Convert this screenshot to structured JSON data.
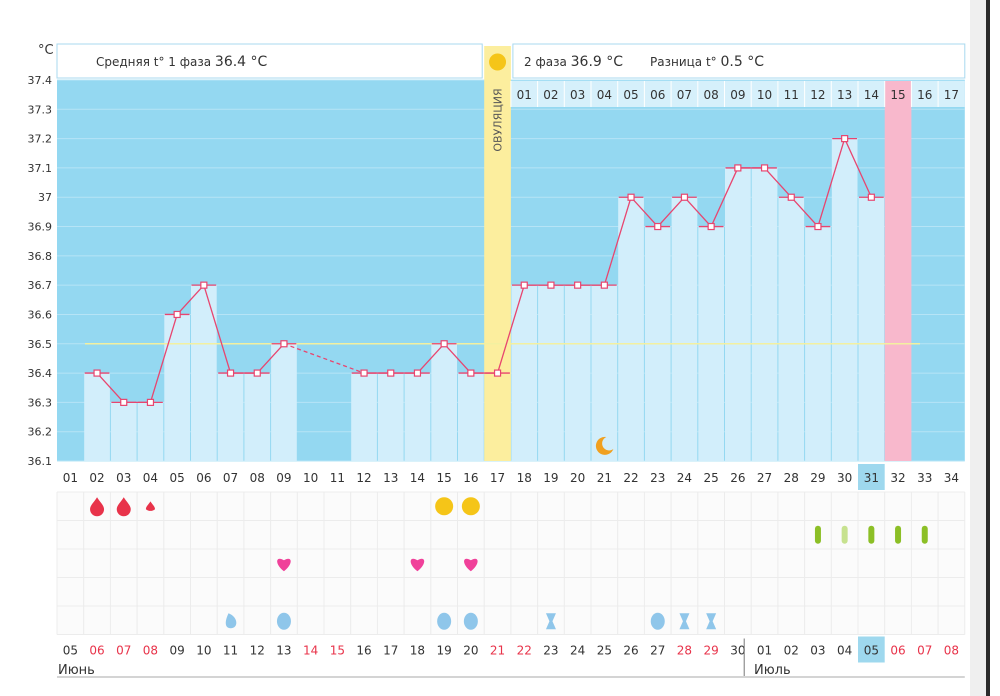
{
  "header": {
    "unit": "°C",
    "phase1_label": "Средняя t° 1 фаза",
    "phase1_value": "36.4 °C",
    "phase2_label": "2 фаза",
    "phase2_value": "36.9 °C",
    "diff_label": "Разница t°",
    "diff_value": "0.5 °C",
    "ovulation_label": "ОВУЛЯЦИЯ"
  },
  "months": {
    "june": "Июнь",
    "july": "Июль"
  },
  "colors": {
    "sky": "#94d8f1",
    "bar": "#d2eefb",
    "ovulation": "#fcee9e",
    "pink_day": "#f8b8cc",
    "line": "#e8456f",
    "cover_line": "#f3f0a0",
    "red_date": "#e8334a",
    "highlight": "#9ed8ee"
  },
  "chart_data": {
    "type": "line",
    "title": "",
    "ylabel": "°C",
    "ylim": [
      36.1,
      37.4
    ],
    "yticks": [
      "36.1",
      "36.2",
      "36.3",
      "36.4",
      "36.5",
      "36.6",
      "36.7",
      "36.8",
      "36.9",
      "37",
      "37.1",
      "37.2",
      "37.3",
      "37.4"
    ],
    "cycle_days": [
      "01",
      "02",
      "03",
      "04",
      "05",
      "06",
      "07",
      "08",
      "09",
      "10",
      "11",
      "12",
      "13",
      "14",
      "15",
      "16",
      "17",
      "18",
      "19",
      "20",
      "21",
      "22",
      "23",
      "24",
      "25",
      "26",
      "27",
      "28",
      "29",
      "30",
      "31",
      "32",
      "33",
      "34"
    ],
    "highlighted_cycle_day": "31",
    "dates": [
      "05",
      "06",
      "07",
      "08",
      "09",
      "10",
      "11",
      "12",
      "13",
      "14",
      "15",
      "16",
      "17",
      "18",
      "19",
      "20",
      "21",
      "22",
      "23",
      "24",
      "25",
      "26",
      "27",
      "28",
      "29",
      "30",
      "01",
      "02",
      "03",
      "04",
      "05",
      "06",
      "07",
      "08"
    ],
    "red_dates": [
      "07",
      "08",
      "14",
      "15",
      "21",
      "22",
      "28",
      "29",
      "06"
    ],
    "highlighted_date_index": 30,
    "phase2_day_labels": [
      "01",
      "02",
      "03",
      "04",
      "05",
      "06",
      "07",
      "08",
      "09",
      "10",
      "11",
      "12",
      "13",
      "14",
      "15",
      "16",
      "17"
    ],
    "temperatures": [
      null,
      36.4,
      36.3,
      36.3,
      36.6,
      36.7,
      36.4,
      36.4,
      36.5,
      null,
      null,
      36.4,
      36.4,
      36.4,
      36.5,
      36.4,
      36.4,
      36.7,
      36.7,
      36.7,
      36.7,
      37.0,
      36.9,
      37.0,
      36.9,
      37.1,
      37.1,
      37.0,
      36.9,
      37.2,
      37.0,
      null,
      null,
      null
    ],
    "cover_line": 36.5,
    "ovulation_day": 17,
    "pink_day": 32,
    "moon_day": 21,
    "markers": {
      "bleeding_large_days": [
        2,
        3
      ],
      "bleeding_small_days": [
        4
      ],
      "ovulation_test_days": [
        15,
        16
      ],
      "pill_days": [
        29,
        30,
        31,
        32,
        33
      ],
      "pill_light_day": 30,
      "heart_days": [
        9,
        14,
        16
      ],
      "drop_small_days": [
        7
      ],
      "drop_days": [
        9,
        15,
        16,
        23
      ],
      "hourglass_days": [
        19,
        24,
        25
      ]
    }
  }
}
